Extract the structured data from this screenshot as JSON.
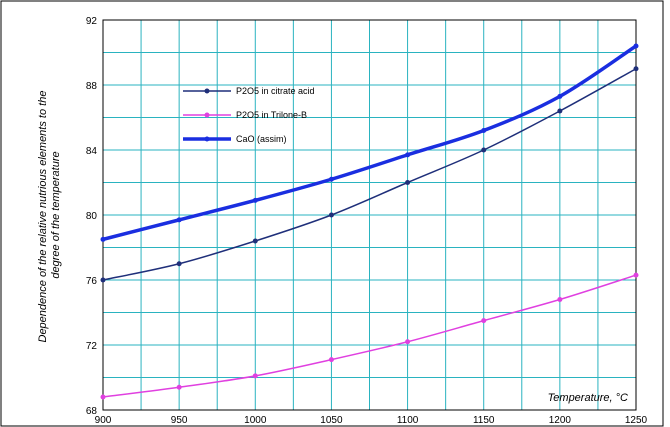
{
  "chart_data": {
    "type": "line",
    "title": "",
    "xlabel": "Temperature, °C",
    "ylabel": [
      "Dependence of the relative nutrious elements to the",
      "degree of the temperature"
    ],
    "x": [
      900,
      950,
      1000,
      1050,
      1100,
      1150,
      1200,
      1250
    ],
    "xlim": [
      900,
      1250
    ],
    "ylim": [
      68,
      92
    ],
    "x_ticks": [
      "900",
      "950",
      "1000",
      "1050",
      "1100",
      "1150",
      "1200",
      "1250"
    ],
    "y_ticks": [
      "68",
      "72",
      "76",
      "80",
      "84",
      "88",
      "92"
    ],
    "grid": true,
    "legend_position": "top-left",
    "series": [
      {
        "name": "P2O5 in citrate acid",
        "values": [
          76.0,
          77.0,
          78.4,
          80.0,
          82.0,
          84.0,
          86.4,
          89.0
        ],
        "color": "#1f2f7a"
      },
      {
        "name": "P2O5 in Trilone-B",
        "values": [
          68.8,
          69.4,
          70.1,
          71.1,
          72.2,
          73.5,
          74.8,
          76.3
        ],
        "color": "#e040e0"
      },
      {
        "name": "CaO (assim)",
        "values": [
          78.5,
          79.7,
          80.9,
          82.2,
          83.7,
          85.2,
          87.3,
          90.4
        ],
        "color": "#1a2ee0"
      }
    ],
    "colors": {
      "grid": "#2ab3c0",
      "plot_border": "#000000"
    }
  }
}
